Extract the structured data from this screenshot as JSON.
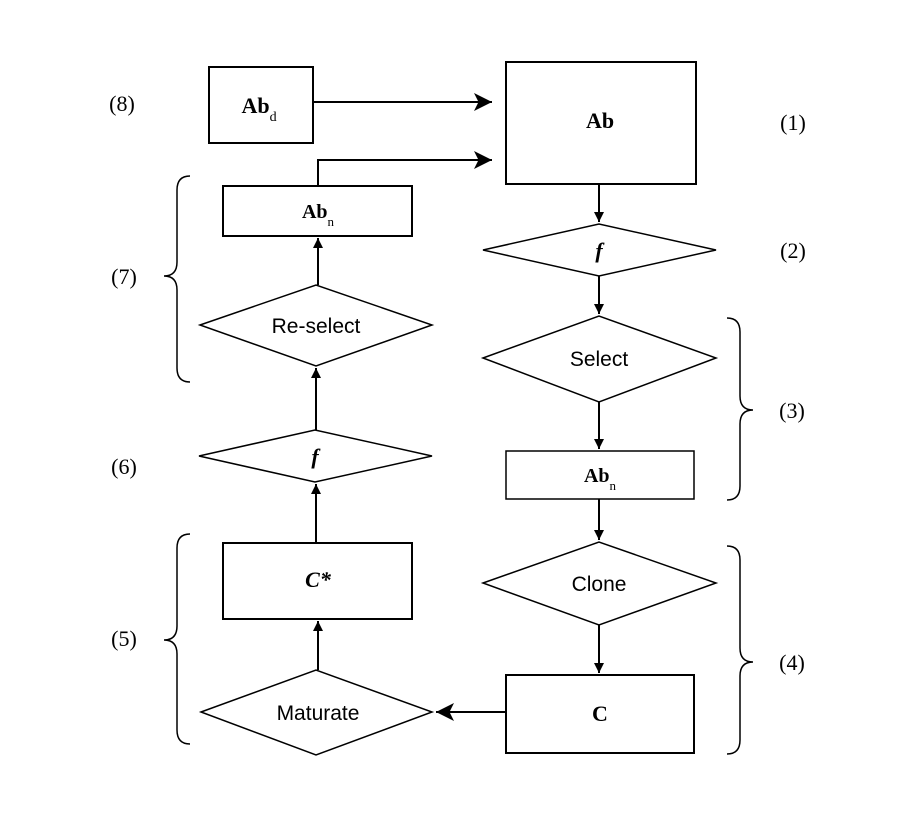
{
  "nodes": {
    "ab": {
      "label": "Ab"
    },
    "f_top": {
      "label": "f"
    },
    "select": {
      "label": "Select"
    },
    "abn_right": {
      "base": "Ab",
      "sub": "n"
    },
    "clone": {
      "label": "Clone"
    },
    "c": {
      "label": "C"
    },
    "maturate": {
      "label": "Maturate"
    },
    "c_star": {
      "label": "C*"
    },
    "f_left": {
      "label": "f"
    },
    "reselect": {
      "label": "Re-select"
    },
    "abn_left": {
      "base": "Ab",
      "sub": "n"
    },
    "abd": {
      "base": "Ab",
      "sub": "d"
    }
  },
  "step_labels": {
    "s1": "(1)",
    "s2": "(2)",
    "s3": "(3)",
    "s4": "(4)",
    "s5": "(5)",
    "s6": "(6)",
    "s7": "(7)",
    "s8": "(8)"
  }
}
